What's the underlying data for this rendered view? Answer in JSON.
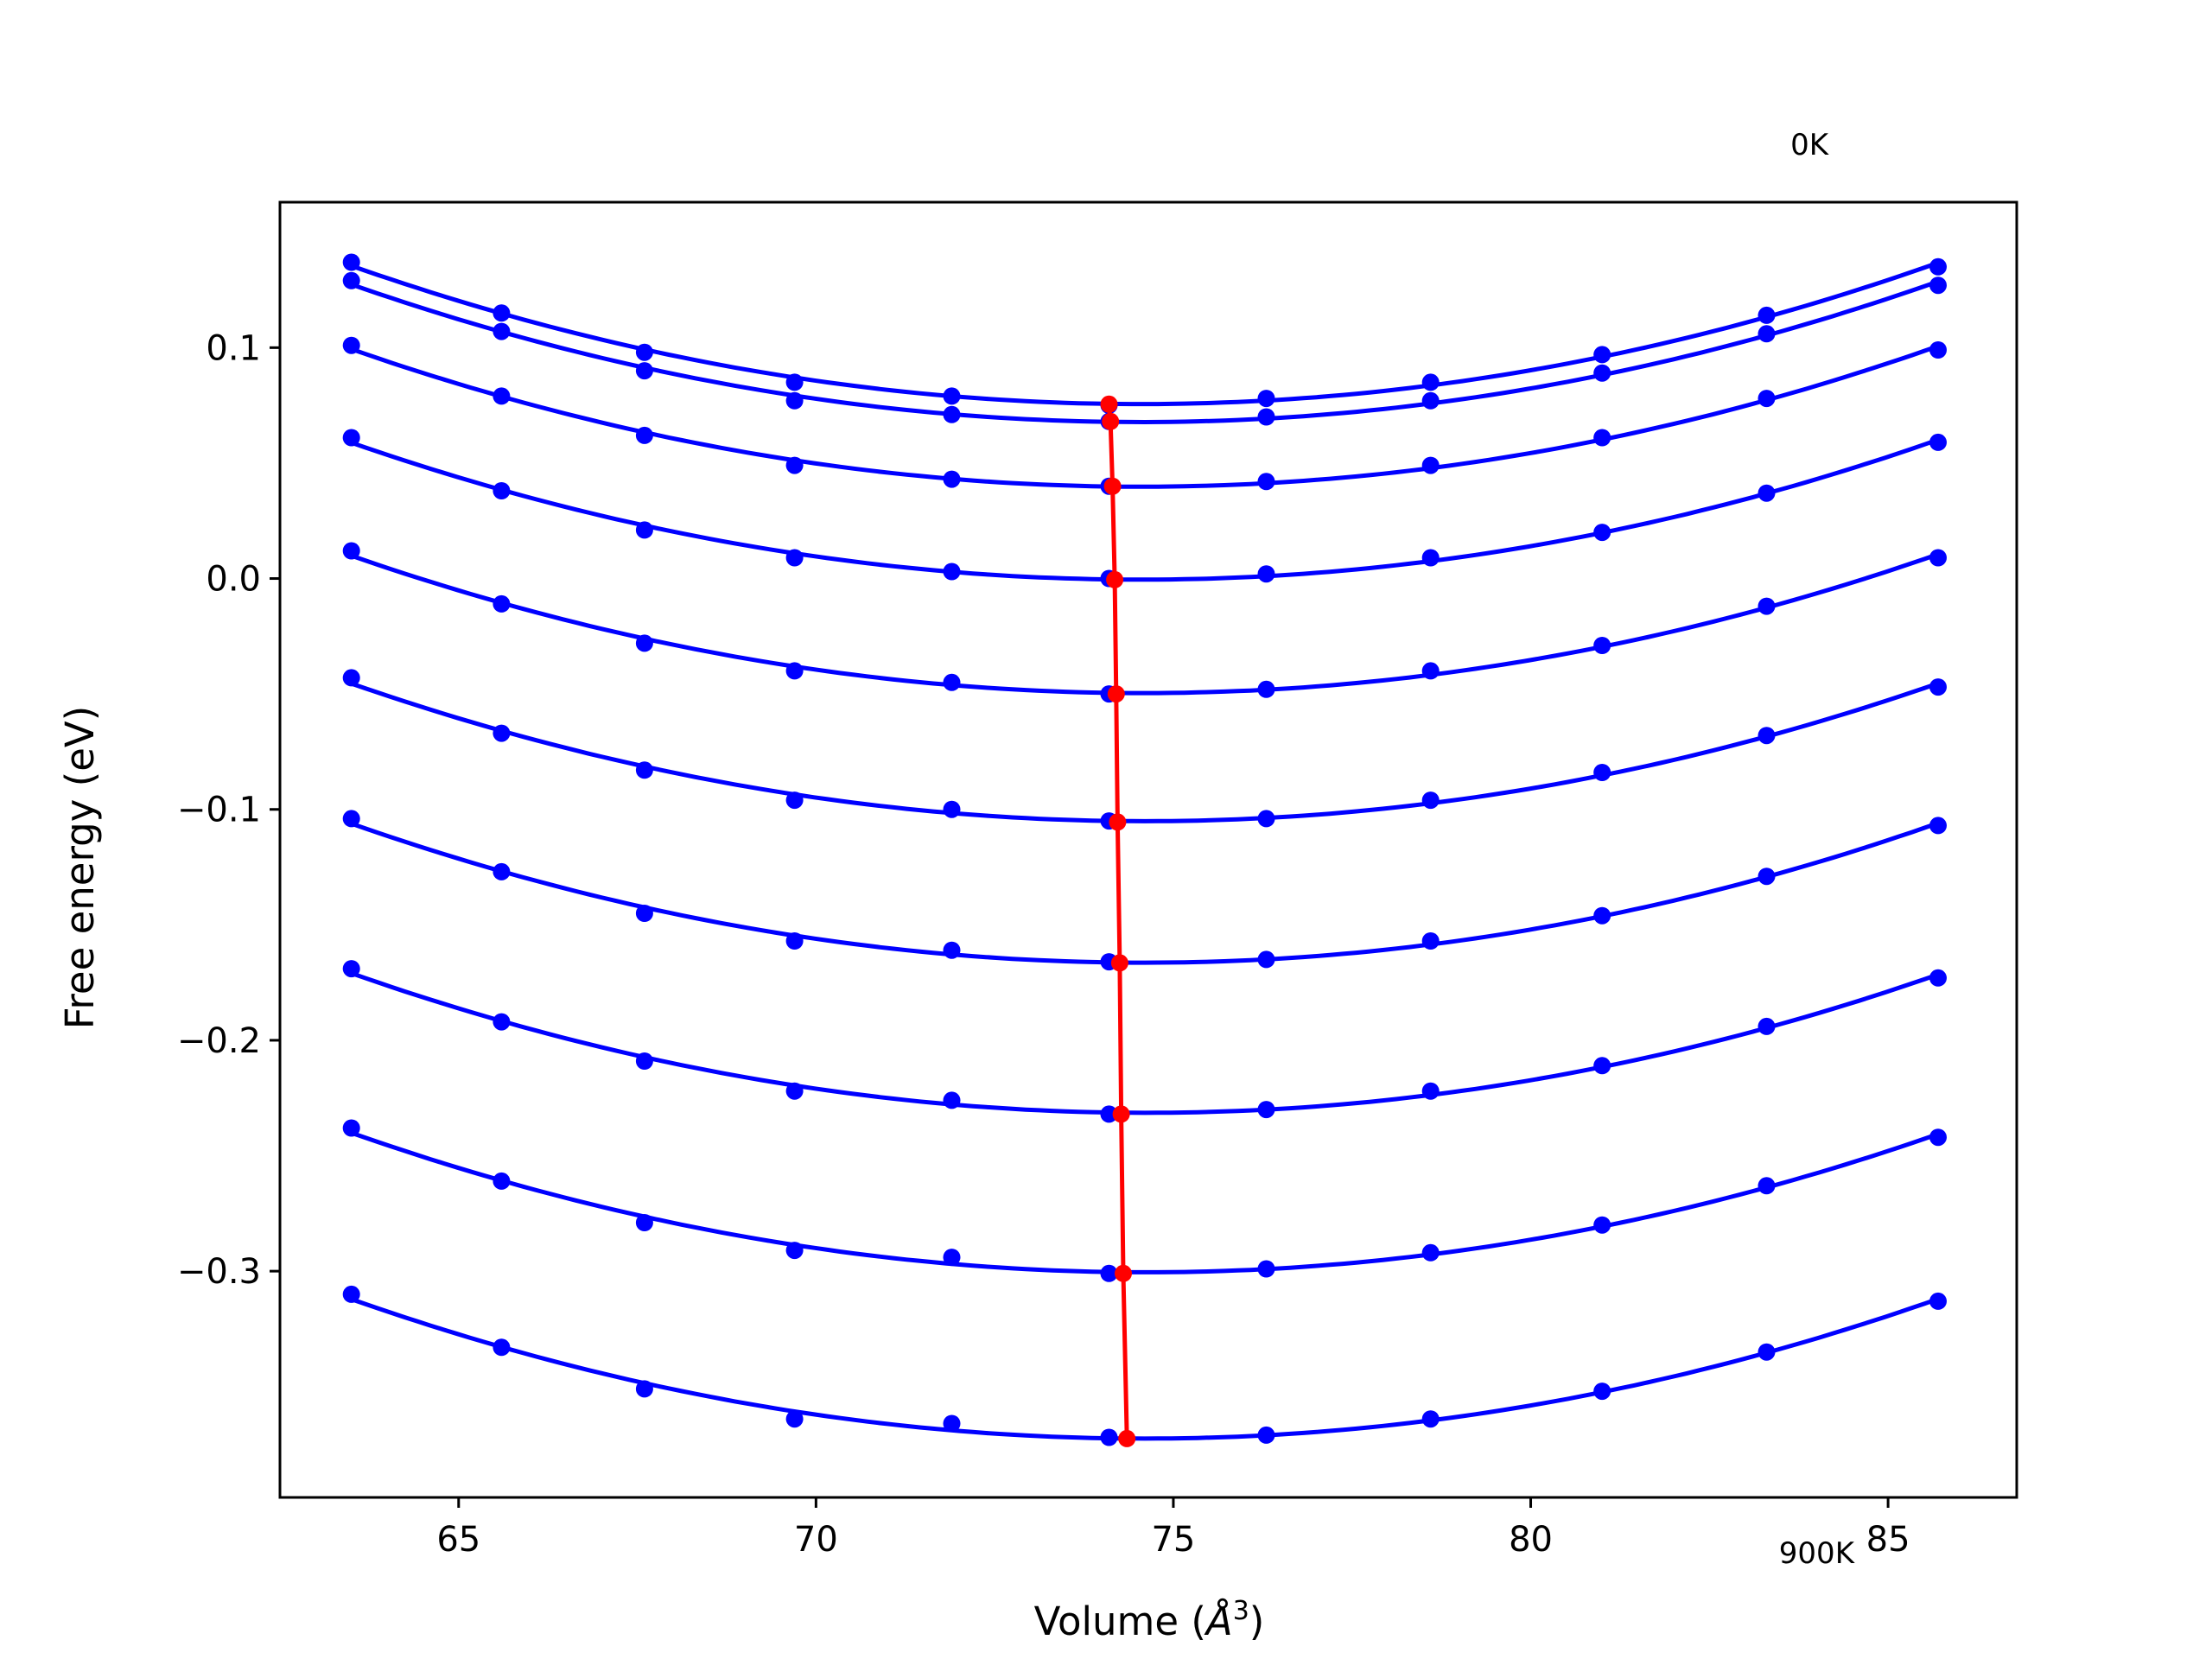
{
  "chart_data": {
    "type": "line",
    "xlabel_prefix": "Volume (",
    "xlabel_unit": "Å",
    "xlabel_exp": "3",
    "xlabel_suffix": ")",
    "ylabel": "Free energy (eV)",
    "xlim": [
      62.5,
      86.8
    ],
    "ylim": [
      -0.398,
      0.163
    ],
    "xticks": [
      65,
      70,
      75,
      80,
      85
    ],
    "xtick_labels": [
      "65",
      "70",
      "75",
      "80",
      "85"
    ],
    "yticks": [
      0.1,
      0.0,
      -0.1,
      -0.2,
      -0.3
    ],
    "ytick_labels": [
      "0.1",
      "0.0",
      "−0.1",
      "−0.2",
      "−0.3"
    ],
    "annotations": [
      {
        "text": "0K",
        "x": 83.9,
        "y": 0.188
      },
      {
        "text": "900K",
        "x": 84.0,
        "y": -0.422
      }
    ],
    "x": [
      63.5,
      65.6,
      67.6,
      69.7,
      71.9,
      74.1,
      76.3,
      78.6,
      81.0,
      83.3,
      85.7
    ],
    "colors": {
      "curves": "#0000ff",
      "minima": "#ff0000",
      "frame": "#000000"
    },
    "series": [
      {
        "values": [
          0.137,
          0.115,
          0.098,
          0.085,
          0.079,
          0.075,
          0.078,
          0.085,
          0.097,
          0.114,
          0.135
        ],
        "min": [
          74.1,
          0.0755
        ]
      },
      {
        "values": [
          0.129,
          0.107,
          0.09,
          0.077,
          0.071,
          0.068,
          0.07,
          0.077,
          0.089,
          0.106,
          0.127
        ],
        "min": [
          74.12,
          0.068
        ]
      },
      {
        "values": [
          0.101,
          0.079,
          0.062,
          0.049,
          0.043,
          0.04,
          0.042,
          0.049,
          0.061,
          0.078,
          0.099
        ],
        "min": [
          74.15,
          0.04
        ]
      },
      {
        "values": [
          0.061,
          0.038,
          0.021,
          0.009,
          0.003,
          0.0,
          0.002,
          0.009,
          0.02,
          0.037,
          0.059
        ],
        "min": [
          74.18,
          -0.0005
        ]
      },
      {
        "values": [
          0.012,
          -0.011,
          -0.028,
          -0.04,
          -0.045,
          -0.05,
          -0.048,
          -0.04,
          -0.029,
          -0.012,
          0.009
        ],
        "min": [
          74.2,
          -0.05
        ]
      },
      {
        "values": [
          -0.043,
          -0.067,
          -0.083,
          -0.096,
          -0.1,
          -0.105,
          -0.104,
          -0.096,
          -0.084,
          -0.068,
          -0.047
        ],
        "min": [
          74.22,
          -0.1055
        ]
      },
      {
        "values": [
          -0.104,
          -0.127,
          -0.145,
          -0.157,
          -0.161,
          -0.166,
          -0.165,
          -0.157,
          -0.146,
          -0.129,
          -0.107
        ],
        "min": [
          74.25,
          -0.1665
        ]
      },
      {
        "values": [
          -0.169,
          -0.192,
          -0.209,
          -0.222,
          -0.226,
          -0.232,
          -0.23,
          -0.222,
          -0.211,
          -0.194,
          -0.173
        ],
        "min": [
          74.27,
          -0.232
        ]
      },
      {
        "values": [
          -0.238,
          -0.261,
          -0.279,
          -0.291,
          -0.294,
          -0.301,
          -0.299,
          -0.292,
          -0.28,
          -0.263,
          -0.242
        ],
        "min": [
          74.3,
          -0.301
        ]
      },
      {
        "values": [
          -0.31,
          -0.333,
          -0.351,
          -0.364,
          -0.366,
          -0.372,
          -0.371,
          -0.364,
          -0.352,
          -0.335,
          -0.313
        ],
        "min": [
          74.35,
          -0.3725
        ]
      }
    ]
  }
}
